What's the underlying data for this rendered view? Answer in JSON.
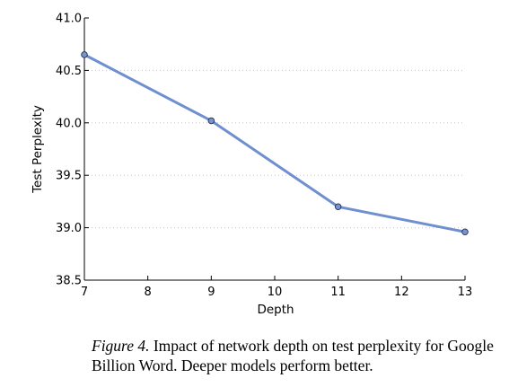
{
  "chart_data": {
    "type": "line",
    "xlabel": "Depth",
    "ylabel": "Test Perplexity",
    "xlim": [
      7,
      13
    ],
    "ylim": [
      38.5,
      41.0
    ],
    "x_ticks": [
      "7",
      "8",
      "9",
      "10",
      "11",
      "12",
      "13"
    ],
    "y_ticks": [
      "38.5",
      "39.0",
      "39.5",
      "40.0",
      "40.5",
      "41.0"
    ],
    "grid": "horizontal dotted",
    "series": [
      {
        "x": [
          7,
          9,
          11,
          13
        ],
        "y": [
          40.65,
          40.02,
          39.2,
          38.96
        ],
        "color": "#6f8fcf",
        "marker_fill": "#7b93c9",
        "marker_edge": "#1f2f5f"
      }
    ]
  },
  "caption": {
    "label": "Figure 4.",
    "text": " Impact of network depth on test perplexity for Google Billion Word. Deeper models perform better."
  }
}
